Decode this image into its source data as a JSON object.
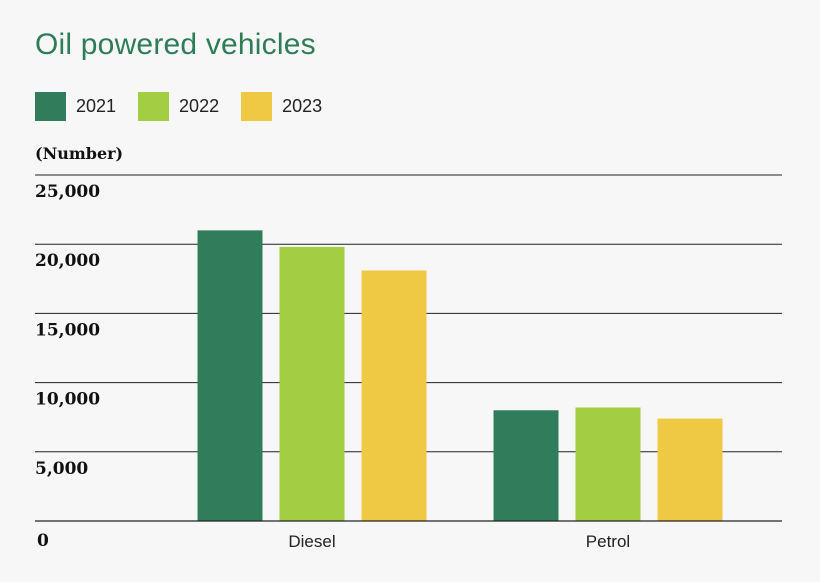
{
  "chart_data": {
    "type": "bar",
    "title": "Oil powered vehicles",
    "ylabel": "(Number)",
    "xlabel": "",
    "categories": [
      "Diesel",
      "Petrol"
    ],
    "series": [
      {
        "name": "2021",
        "color": "#317c5a",
        "values": [
          21000,
          8000
        ]
      },
      {
        "name": "2022",
        "color": "#a3cd43",
        "values": [
          19800,
          8200
        ]
      },
      {
        "name": "2023",
        "color": "#f0c944",
        "values": [
          18100,
          7400
        ]
      }
    ],
    "yticks": [
      0,
      5000,
      10000,
      15000,
      20000,
      25000
    ],
    "ytick_labels": [
      "0",
      "5,000",
      "10,000",
      "15,000",
      "20,000",
      "25,000"
    ],
    "ylim": [
      0,
      25000
    ],
    "grid": true
  }
}
